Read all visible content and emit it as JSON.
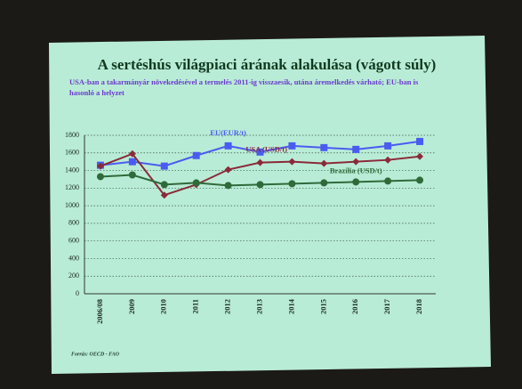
{
  "chart_data": {
    "type": "line",
    "title": "A sertéshús világpiaci árának alakulása (vágott súly)",
    "subtitle": "USA-ban a takarmányár növekedésével a termelés 2011-ig visszaesik, utána áremelkedés várható; EU-ban is hasonló a helyzet",
    "source": "Forrás: OECD - FAO",
    "categories": [
      "2006/08",
      "2009",
      "2010",
      "2011",
      "2012",
      "2013",
      "2014",
      "2015",
      "2016",
      "2017",
      "2018"
    ],
    "series": [
      {
        "name": "EU(EUR/t)",
        "color": "#4a5cf0",
        "marker": "square",
        "values": [
          1460,
          1500,
          1450,
          1570,
          1680,
          1610,
          1680,
          1660,
          1640,
          1680,
          1730
        ]
      },
      {
        "name": "USA (USD/t)",
        "color": "#8a2a3a",
        "marker": "diamond",
        "values": [
          1450,
          1590,
          1120,
          1240,
          1410,
          1490,
          1500,
          1480,
          1500,
          1520,
          1560
        ]
      },
      {
        "name": "Brazília (USD/t)",
        "color": "#2f6a3a",
        "marker": "circle",
        "values": [
          1330,
          1350,
          1240,
          1260,
          1230,
          1240,
          1250,
          1260,
          1270,
          1280,
          1290
        ]
      }
    ],
    "ylim": [
      0,
      1800
    ],
    "yticks": [
      0,
      200,
      400,
      600,
      800,
      1000,
      1200,
      1400,
      1600,
      1800
    ],
    "grid": true
  }
}
